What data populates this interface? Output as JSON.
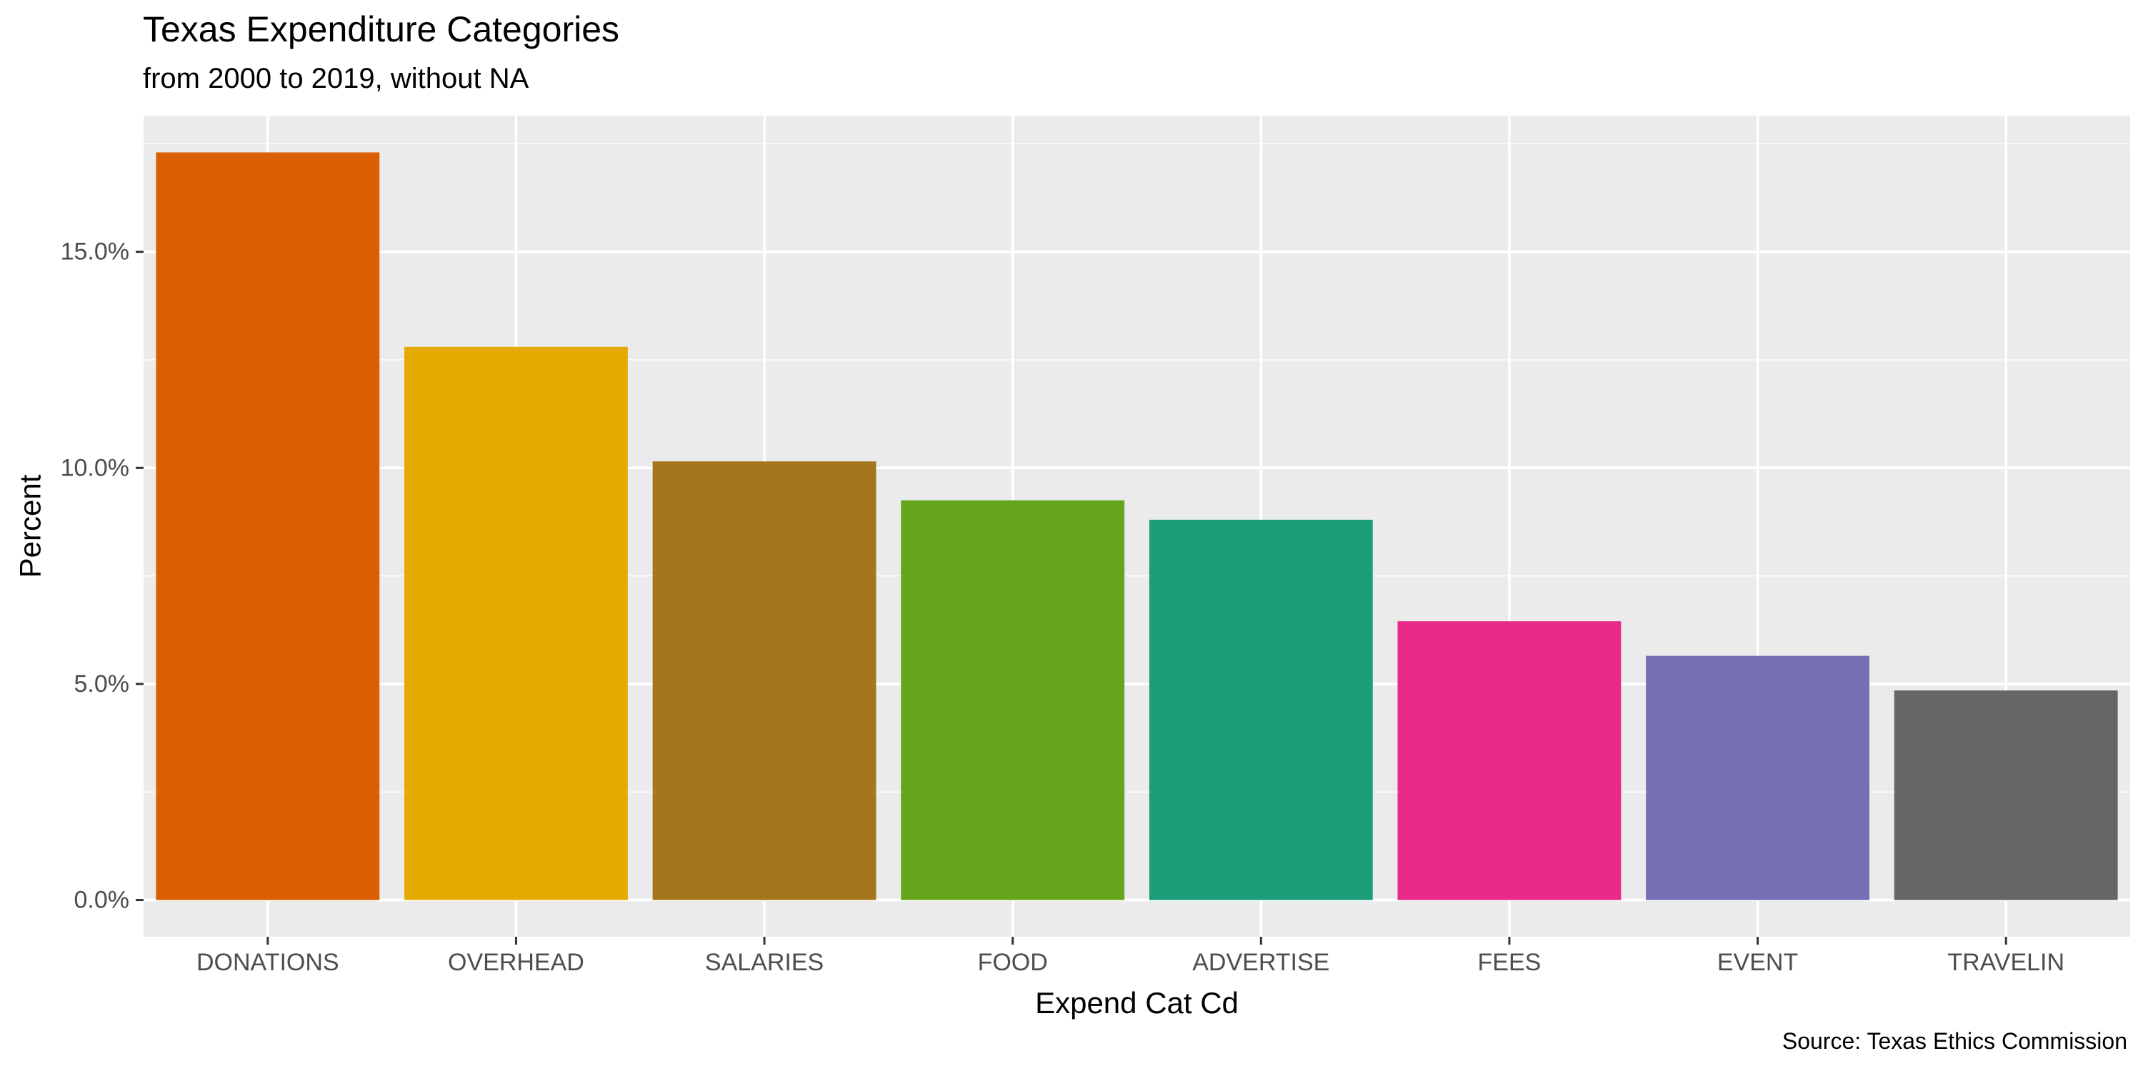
{
  "chart_data": {
    "type": "bar",
    "title": "Texas Expenditure Categories",
    "subtitle": "from 2000 to 2019, without NA",
    "caption": "Source: Texas Ethics Commission",
    "xlabel": "Expend Cat Cd",
    "ylabel": "Percent",
    "categories": [
      "DONATIONS",
      "OVERHEAD",
      "SALARIES",
      "FOOD",
      "ADVERTISE",
      "FEES",
      "EVENT",
      "TRAVELIN"
    ],
    "values": [
      17.3,
      12.8,
      10.15,
      9.25,
      8.8,
      6.45,
      5.65,
      4.85
    ],
    "colors": [
      "#D95F02",
      "#E6AB02",
      "#A6761D",
      "#66A61E",
      "#1B9E77",
      "#E7298A",
      "#7570B3",
      "#666666"
    ],
    "ylim": [
      -0.85,
      18.15
    ],
    "yticks": [
      0,
      5,
      10,
      15
    ],
    "ytick_labels": [
      "0.0%",
      "5.0%",
      "10.0%",
      "15.0%"
    ],
    "grid": true,
    "legend": "none",
    "panel_background": "#EBEBEB"
  }
}
